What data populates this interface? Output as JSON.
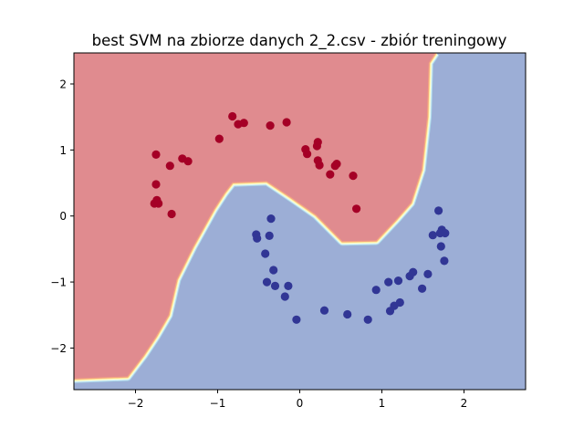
{
  "chart_data": {
    "type": "scatter",
    "title": "best SVM na zbiorze danych 2_2.csv - zbiór treningowy",
    "xlabel": "",
    "ylabel": "",
    "xlim": [
      -2.75,
      2.75
    ],
    "ylim": [
      -2.63,
      2.47
    ],
    "xticks": [
      -2,
      -1,
      0,
      1,
      2
    ],
    "yticks": [
      -2,
      -1,
      0,
      1,
      2
    ],
    "xtick_labels": [
      "−2",
      "−1",
      "0",
      "1",
      "2"
    ],
    "ytick_labels": [
      "−2",
      "−1",
      "0",
      "1",
      "2"
    ],
    "grid": false,
    "legend": "none",
    "colors": {
      "class_red_point": "#a50026",
      "class_blue_point": "#313695",
      "region_red": "#e08b8f",
      "region_blue": "#9caed6",
      "boundary_bands": [
        "#f4a582",
        "#fee090",
        "#ffffbf",
        "#e0f3f8",
        "#abd9e9"
      ]
    },
    "decision_boundary": [
      [
        -2.75,
        -2.46
      ],
      [
        -2.1,
        -2.43
      ],
      [
        -1.9,
        -2.1
      ],
      [
        -1.75,
        -1.82
      ],
      [
        -1.6,
        -1.5
      ],
      [
        -1.5,
        -0.96
      ],
      [
        -1.3,
        -0.46
      ],
      [
        -1.05,
        0.1
      ],
      [
        -0.92,
        0.35
      ],
      [
        -0.82,
        0.51
      ],
      [
        -0.4,
        0.53
      ],
      [
        -0.1,
        0.28
      ],
      [
        0.2,
        0.02
      ],
      [
        0.52,
        -0.38
      ],
      [
        0.93,
        -0.37
      ],
      [
        1.18,
        -0.04
      ],
      [
        1.35,
        0.2
      ],
      [
        1.48,
        0.7
      ],
      [
        1.55,
        1.5
      ],
      [
        1.57,
        2.32
      ],
      [
        1.65,
        2.47
      ]
    ],
    "series": [
      {
        "class": 0,
        "x": [
          -0.82,
          -0.75,
          -0.68,
          -0.36,
          -0.16,
          -0.98,
          -1.75,
          -1.58,
          -1.43,
          -1.36,
          -1.75,
          -1.77,
          -1.74,
          -1.72,
          -1.56,
          0.07,
          0.22,
          0.21,
          0.09,
          0.22,
          0.24,
          0.45,
          0.43,
          0.37,
          0.65,
          0.69
        ],
        "y": [
          1.51,
          1.39,
          1.41,
          1.37,
          1.42,
          1.17,
          0.93,
          0.76,
          0.87,
          0.83,
          0.48,
          0.19,
          0.24,
          0.19,
          0.03,
          1.01,
          1.12,
          1.06,
          0.94,
          0.84,
          0.77,
          0.79,
          0.76,
          0.63,
          0.61,
          0.11
        ]
      },
      {
        "class": 1,
        "x": [
          -0.35,
          -0.53,
          -0.52,
          -0.37,
          -0.42,
          -0.32,
          -0.4,
          -0.3,
          -0.14,
          -0.18,
          -0.04,
          0.3,
          0.58,
          0.83,
          0.93,
          1.08,
          1.1,
          1.15,
          1.2,
          1.22,
          1.34,
          1.38,
          1.49,
          1.56,
          1.62,
          1.69,
          1.73,
          1.71,
          1.77,
          1.72,
          1.76
        ],
        "y": [
          -0.04,
          -0.28,
          -0.34,
          -0.3,
          -0.57,
          -0.82,
          -1.0,
          -1.06,
          -1.06,
          -1.22,
          -1.57,
          -1.43,
          -1.49,
          -1.57,
          -1.12,
          -1.0,
          -1.44,
          -1.36,
          -0.98,
          -1.31,
          -0.91,
          -0.85,
          -1.1,
          -0.88,
          -0.29,
          0.08,
          -0.21,
          -0.26,
          -0.26,
          -0.46,
          -0.68
        ]
      }
    ]
  }
}
